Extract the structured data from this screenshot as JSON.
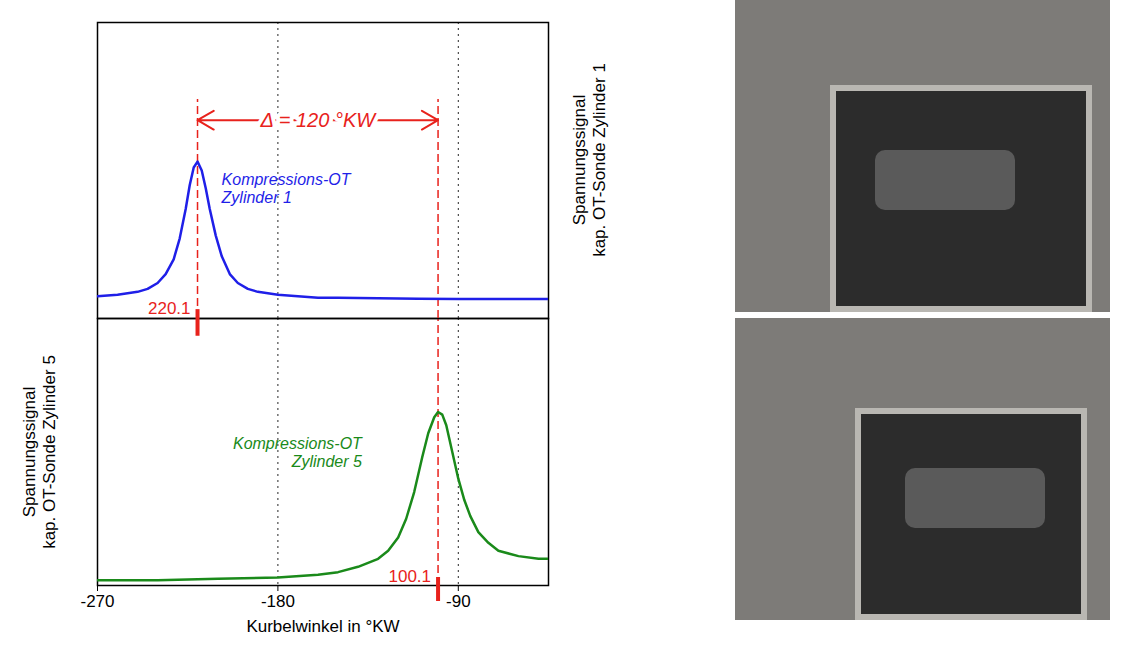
{
  "chart_data": {
    "type": "line",
    "xlabel": "Kurbelwinkel in °KW",
    "xlim": [
      -270,
      -45
    ],
    "xticks": [
      -270,
      -180,
      -90
    ],
    "grid": true,
    "tick_labels": "x",
    "panels": [
      {
        "ylabel": "Spannungssignal\nkap. OT-Sonde Zylinder 1",
        "ylim": [
          0,
          1
        ],
        "series": [
          {
            "name": "Kompressions-OT\nZylinder 1",
            "color": "#1f1fe8",
            "x": [
              -270,
              -260,
              -250,
              -245,
              -240,
              -236,
              -232,
              -229,
              -226,
              -224,
              -222,
              -220.1,
              -218,
              -216,
              -214,
              -211,
              -208,
              -204,
              -200,
              -195,
              -190,
              -180,
              -170,
              -160,
              -150,
              -130,
              -110,
              -90,
              -70,
              -45
            ],
            "values": [
              0.075,
              0.08,
              0.09,
              0.1,
              0.12,
              0.15,
              0.2,
              0.27,
              0.37,
              0.45,
              0.51,
              0.53,
              0.5,
              0.44,
              0.37,
              0.28,
              0.21,
              0.15,
              0.12,
              0.1,
              0.09,
              0.08,
              0.075,
              0.07,
              0.07,
              0.068,
              0.067,
              0.066,
              0.066,
              0.066
            ]
          }
        ],
        "marker": {
          "x": -220.1,
          "label": "220.1"
        }
      },
      {
        "ylabel": "Spannungssignal\nkap. OT-Sonde Zylinder 5",
        "ylim": [
          0,
          1
        ],
        "series": [
          {
            "name": "Kompressions-OT\nZylinder 5",
            "color": "#1a8a1a",
            "x": [
              -270,
              -240,
              -210,
              -180,
              -160,
              -150,
              -140,
              -130,
              -125,
              -120,
              -116,
              -112,
              -108,
              -105,
              -102,
              -100.1,
              -98,
              -96,
              -93,
              -90,
              -87,
              -84,
              -80,
              -75,
              -70,
              -60,
              -50,
              -45
            ],
            "values": [
              0.02,
              0.02,
              0.025,
              0.03,
              0.04,
              0.05,
              0.07,
              0.1,
              0.13,
              0.18,
              0.25,
              0.35,
              0.48,
              0.57,
              0.63,
              0.65,
              0.64,
              0.6,
              0.5,
              0.4,
              0.32,
              0.26,
              0.2,
              0.16,
              0.13,
              0.11,
              0.1,
              0.1
            ]
          }
        ],
        "marker": {
          "x": -100.1,
          "label": "100.1"
        }
      }
    ],
    "annotation": {
      "text": "Δ = 120 °KW",
      "from": -220.1,
      "to": -100.1,
      "color": "#e8221c"
    }
  }
}
